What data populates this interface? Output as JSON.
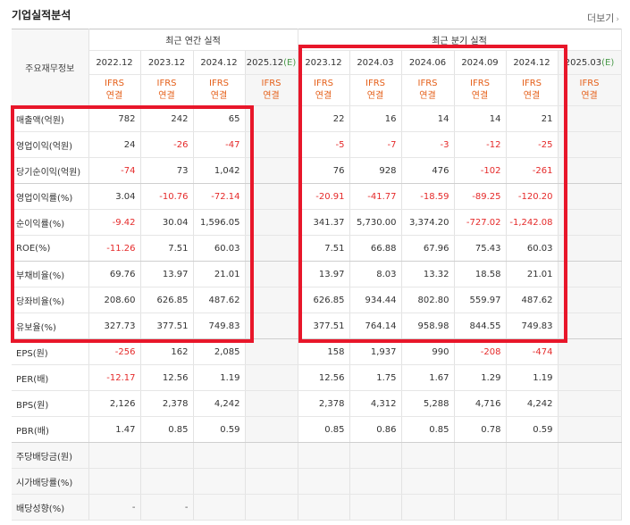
{
  "header": {
    "title": "기업실적분석",
    "more_label": "더보기"
  },
  "table": {
    "row_header_label": "주요재무정보",
    "annual_group_label": "최근 연간 실적",
    "quarter_group_label": "최근 분기 실적",
    "annual_periods": [
      "2022.12",
      "2023.12",
      "2024.12"
    ],
    "annual_estimate": {
      "period": "2025.12",
      "mark": "(E)"
    },
    "quarter_periods": [
      "2023.12",
      "2024.03",
      "2024.06",
      "2024.09",
      "2024.12"
    ],
    "quarter_estimate": {
      "period": "2025.03",
      "mark": "(E)"
    },
    "ifrs_top": "IFRS",
    "ifrs_bottom": "연결",
    "rows": [
      {
        "label": "매출액(억원)",
        "annual": [
          "782",
          "242",
          "65"
        ],
        "quarter": [
          "22",
          "16",
          "14",
          "14",
          "21"
        ]
      },
      {
        "label": "영업이익(억원)",
        "annual": [
          "24",
          "-26",
          "-47"
        ],
        "quarter": [
          "-5",
          "-7",
          "-3",
          "-12",
          "-25"
        ]
      },
      {
        "label": "당기순이익(억원)",
        "annual": [
          "-74",
          "73",
          "1,042"
        ],
        "quarter": [
          "76",
          "928",
          "476",
          "-102",
          "-261"
        ]
      },
      {
        "label": "영업이익률(%)",
        "annual": [
          "3.04",
          "-10.76",
          "-72.14"
        ],
        "quarter": [
          "-20.91",
          "-41.77",
          "-18.59",
          "-89.25",
          "-120.20"
        ]
      },
      {
        "label": "순이익률(%)",
        "annual": [
          "-9.42",
          "30.04",
          "1,596.05"
        ],
        "quarter": [
          "341.37",
          "5,730.00",
          "3,374.20",
          "-727.02",
          "-1,242.08"
        ]
      },
      {
        "label": "ROE(%)",
        "annual": [
          "-11.26",
          "7.51",
          "60.03"
        ],
        "quarter": [
          "7.51",
          "66.88",
          "67.96",
          "75.43",
          "60.03"
        ]
      },
      {
        "label": "부채비율(%)",
        "annual": [
          "69.76",
          "13.97",
          "21.01"
        ],
        "quarter": [
          "13.97",
          "8.03",
          "13.32",
          "18.58",
          "21.01"
        ]
      },
      {
        "label": "당좌비율(%)",
        "annual": [
          "208.60",
          "626.85",
          "487.62"
        ],
        "quarter": [
          "626.85",
          "934.44",
          "802.80",
          "559.97",
          "487.62"
        ]
      },
      {
        "label": "유보율(%)",
        "annual": [
          "327.73",
          "377.51",
          "749.83"
        ],
        "quarter": [
          "377.51",
          "764.14",
          "958.98",
          "844.55",
          "749.83"
        ]
      },
      {
        "label": "EPS(원)",
        "annual": [
          "-256",
          "162",
          "2,085"
        ],
        "quarter": [
          "158",
          "1,937",
          "990",
          "-208",
          "-474"
        ]
      },
      {
        "label": "PER(배)",
        "annual": [
          "-12.17",
          "12.56",
          "1.19"
        ],
        "quarter": [
          "12.56",
          "1.75",
          "1.67",
          "1.29",
          "1.19"
        ]
      },
      {
        "label": "BPS(원)",
        "annual": [
          "2,126",
          "2,378",
          "4,242"
        ],
        "quarter": [
          "2,378",
          "4,312",
          "5,288",
          "4,716",
          "4,242"
        ]
      },
      {
        "label": "PBR(배)",
        "annual": [
          "1.47",
          "0.85",
          "0.59"
        ],
        "quarter": [
          "0.85",
          "0.86",
          "0.85",
          "0.78",
          "0.59"
        ]
      },
      {
        "label": "주당배당금(원)",
        "annual": [
          "",
          "",
          ""
        ],
        "quarter": [
          "",
          "",
          "",
          "",
          ""
        ]
      },
      {
        "label": "시가배당률(%)",
        "annual": [
          "",
          "",
          ""
        ],
        "quarter": [
          "",
          "",
          "",
          "",
          ""
        ]
      },
      {
        "label": "배당성향(%)",
        "annual": [
          "-",
          "-",
          ""
        ],
        "quarter": [
          "",
          "",
          "",
          "",
          ""
        ]
      }
    ]
  },
  "colors": {
    "highlight_box": "#e8162a",
    "negative": "#e52a2a",
    "ifrs": "#e5601a",
    "estimate": "#4a9a4a"
  }
}
